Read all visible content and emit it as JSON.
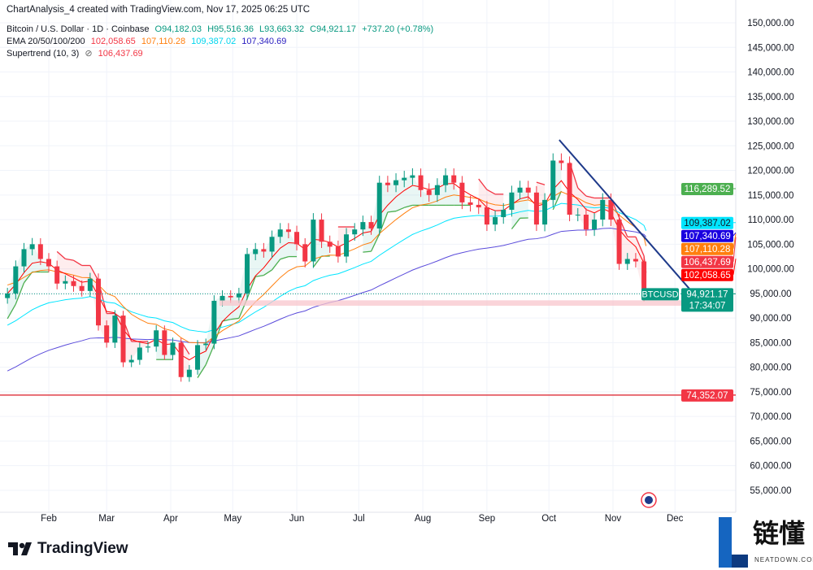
{
  "header": {
    "created": "ChartAnalysis_4 created with TradingView.com, Nov 17, 2025 06:25 UTC",
    "symbol": "Bitcoin / U.S. Dollar · 1D · Coinbase",
    "o": "O94,182.03",
    "h": "H95,516.36",
    "l": "L93,663.32",
    "c": "C94,921.17",
    "change": "+737.20 (+0.78%)",
    "ema_label": "EMA 20/50/100/200",
    "ema20": "102,058.65",
    "ema50": "107,110.28",
    "ema100": "109,387.02",
    "ema200": "107,340.69",
    "st_label": "Supertrend (10, 3)",
    "st_value": "106,437.69"
  },
  "footer": {
    "brand": "TradingView",
    "watermark": "链懂",
    "watermark_sub": "NEATDOWN.COM"
  },
  "chart_data": {
    "type": "candlestick",
    "symbol": "BTCUSD",
    "ylim": [
      52000,
      153000
    ],
    "yticks": [
      150000,
      145000,
      140000,
      135000,
      130000,
      125000,
      120000,
      115000,
      110000,
      105000,
      100000,
      95000,
      90000,
      85000,
      80000,
      75000,
      70000,
      65000,
      60000,
      55000
    ],
    "ytick_labels": [
      "150,000.00",
      "145,000.00",
      "140,000.00",
      "135,000.00",
      "130,000.00",
      "125,000.00",
      "120,000.00",
      "115,000.00",
      "110,000.00",
      "105,000.00",
      "100,000.00",
      "95,000.00",
      "90,000.00",
      "85,000.00",
      "80,000.00",
      "75,000.00",
      "70,000.00",
      "65,000.00",
      "60,000.00",
      "55,000.00"
    ],
    "xticks": [
      {
        "label": "Feb",
        "date": "2025-02-01"
      },
      {
        "label": "Mar",
        "date": "2025-03-01"
      },
      {
        "label": "Apr",
        "date": "2025-04-01"
      },
      {
        "label": "May",
        "date": "2025-05-01"
      },
      {
        "label": "Jun",
        "date": "2025-06-01"
      },
      {
        "label": "Jul",
        "date": "2025-07-01"
      },
      {
        "label": "Aug",
        "date": "2025-08-01"
      },
      {
        "label": "Sep",
        "date": "2025-09-01"
      },
      {
        "label": "Oct",
        "date": "2025-10-01"
      },
      {
        "label": "Nov",
        "date": "2025-11-01"
      },
      {
        "label": "Dec",
        "date": "2025-12-01"
      }
    ],
    "closes": [
      [
        "2025-01-12",
        95000
      ],
      [
        "2025-01-16",
        100500
      ],
      [
        "2025-01-20",
        104000
      ],
      [
        "2025-01-24",
        105000
      ],
      [
        "2025-01-28",
        102000
      ],
      [
        "2025-02-01",
        100500
      ],
      [
        "2025-02-05",
        97000
      ],
      [
        "2025-02-09",
        97500
      ],
      [
        "2025-02-13",
        96500
      ],
      [
        "2025-02-17",
        95500
      ],
      [
        "2025-02-21",
        98000
      ],
      [
        "2025-02-25",
        88500
      ],
      [
        "2025-03-01",
        85000
      ],
      [
        "2025-03-05",
        90500
      ],
      [
        "2025-03-09",
        81000
      ],
      [
        "2025-03-13",
        81500
      ],
      [
        "2025-03-17",
        84000
      ],
      [
        "2025-03-21",
        84200
      ],
      [
        "2025-03-25",
        87500
      ],
      [
        "2025-03-29",
        82500
      ],
      [
        "2025-04-02",
        85000
      ],
      [
        "2025-04-06",
        78000
      ],
      [
        "2025-04-10",
        79500
      ],
      [
        "2025-04-14",
        84500
      ],
      [
        "2025-04-18",
        84800
      ],
      [
        "2025-04-22",
        93500
      ],
      [
        "2025-04-26",
        94500
      ],
      [
        "2025-04-30",
        94200
      ],
      [
        "2025-05-04",
        95000
      ],
      [
        "2025-05-08",
        103000
      ],
      [
        "2025-05-12",
        104000
      ],
      [
        "2025-05-16",
        103500
      ],
      [
        "2025-05-20",
        106500
      ],
      [
        "2025-05-24",
        108000
      ],
      [
        "2025-05-28",
        107500
      ],
      [
        "2025-06-01",
        105000
      ],
      [
        "2025-06-05",
        101500
      ],
      [
        "2025-06-09",
        110000
      ],
      [
        "2025-06-13",
        105500
      ],
      [
        "2025-06-17",
        104500
      ],
      [
        "2025-06-21",
        102500
      ],
      [
        "2025-06-25",
        107000
      ],
      [
        "2025-06-29",
        108000
      ],
      [
        "2025-07-03",
        109500
      ],
      [
        "2025-07-07",
        108200
      ],
      [
        "2025-07-11",
        117500
      ],
      [
        "2025-07-15",
        117000
      ],
      [
        "2025-07-19",
        118000
      ],
      [
        "2025-07-23",
        118500
      ],
      [
        "2025-07-27",
        119000
      ],
      [
        "2025-07-31",
        116000
      ],
      [
        "2025-08-04",
        115000
      ],
      [
        "2025-08-08",
        117000
      ],
      [
        "2025-08-12",
        119000
      ],
      [
        "2025-08-16",
        117500
      ],
      [
        "2025-08-20",
        113500
      ],
      [
        "2025-08-24",
        113000
      ],
      [
        "2025-08-28",
        112500
      ],
      [
        "2025-09-01",
        109000
      ],
      [
        "2025-09-05",
        110500
      ],
      [
        "2025-09-09",
        112000
      ],
      [
        "2025-09-13",
        115500
      ],
      [
        "2025-09-17",
        116500
      ],
      [
        "2025-09-21",
        115500
      ],
      [
        "2025-09-25",
        109000
      ],
      [
        "2025-09-29",
        114000
      ],
      [
        "2025-10-03",
        122000
      ],
      [
        "2025-10-07",
        121500
      ],
      [
        "2025-10-11",
        111000
      ],
      [
        "2025-10-15",
        111000
      ],
      [
        "2025-10-19",
        108000
      ],
      [
        "2025-10-23",
        110000
      ],
      [
        "2025-10-27",
        114000
      ],
      [
        "2025-10-31",
        110000
      ],
      [
        "2025-11-04",
        101000
      ],
      [
        "2025-11-08",
        102000
      ],
      [
        "2025-11-12",
        101500
      ],
      [
        "2025-11-16",
        94500
      ],
      [
        "2025-11-17",
        94921.17
      ]
    ],
    "last_candle": {
      "open": 94182.03,
      "high": 95516.36,
      "low": 93663.32,
      "close": 94921.17
    },
    "last_price_label": "94,921.17",
    "countdown": "17:34:07",
    "symbol_label": "BTCUSD",
    "price_labels": [
      {
        "value": 116289.52,
        "text": "116,289.52",
        "color": "#4caf50"
      },
      {
        "value": 109387.02,
        "text": "109,387.02",
        "color": "#00e5ff"
      },
      {
        "value": 107340.69,
        "text": "107,340.69",
        "color": "#1a00e0"
      },
      {
        "value": 107110.28,
        "text": "107,110.28",
        "color": "#ff7f0e"
      },
      {
        "value": 106437.69,
        "text": "106,437.69",
        "color": "#f23645"
      },
      {
        "value": 102058.65,
        "text": "102,058.65",
        "color": "#ff0000"
      },
      {
        "value": 74352.07,
        "text": "74,352.07",
        "color": "#f23645"
      }
    ],
    "support_line": 74352.07,
    "support_zone": [
      92500,
      93600
    ],
    "trendline": [
      [
        "2025-10-06",
        126200
      ],
      [
        "2025-12-16",
        92100
      ]
    ],
    "colors": {
      "up": "#089981",
      "down": "#f23645",
      "ema20": "#ff0000",
      "ema50": "#ff7f0e",
      "ema100": "#00e5ff",
      "ema200": "#5b4cdb",
      "trend": "#1e3a8a",
      "support": "#e0404a"
    }
  }
}
